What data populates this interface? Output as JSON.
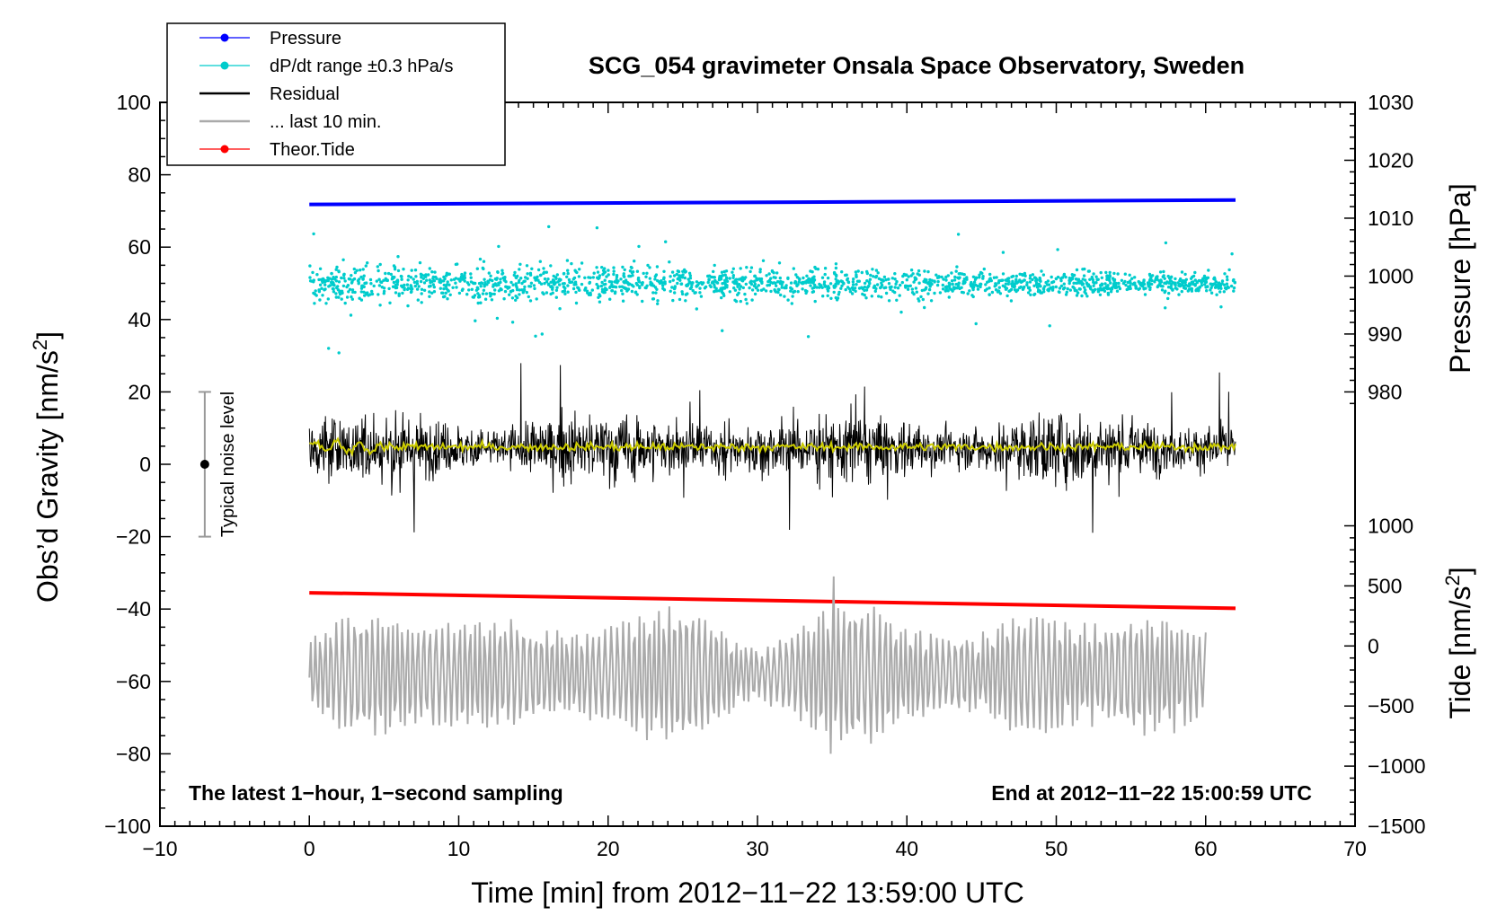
{
  "chart_data": {
    "type": "line",
    "title": "SCG_054 gravimeter Onsala Space Observatory, Sweden",
    "xlabel": "Time [min] from 2012−11−22 13:59:00 UTC",
    "ylabel_left": "Obs’d Gravity [nm/s²]",
    "ylabel_left_main": "Obs’d Gravity [nm/s",
    "ylabel_left_sup": "2",
    "ylabel_left_end": "]",
    "ylabel_pressure": "Pressure [hPa]",
    "ylabel_tide": "Tide [nm/s²]",
    "ylabel_tide_main": "Tide [nm/s",
    "ylabel_tide_sup": "2",
    "ylabel_tide_end": "]",
    "xlim": [
      -10,
      70
    ],
    "ylim": [
      -100,
      100
    ],
    "x_ticks": [
      "−10",
      "0",
      "10",
      "20",
      "30",
      "40",
      "50",
      "60",
      "70"
    ],
    "x_tick_values": [
      -10,
      0,
      10,
      20,
      30,
      40,
      50,
      60,
      70
    ],
    "y_ticks": [
      "100",
      "80",
      "60",
      "40",
      "20",
      "0",
      "−20",
      "−40",
      "−60",
      "−80",
      "−100"
    ],
    "y_tick_values": [
      100,
      80,
      60,
      40,
      20,
      0,
      -20,
      -40,
      -60,
      -80,
      -100
    ],
    "pressure_ticks": [
      "1030",
      "1020",
      "1010",
      "1000",
      "990",
      "980"
    ],
    "pressure_tick_values": [
      1030,
      1020,
      1010,
      1000,
      990,
      980
    ],
    "tide_ticks": [
      "1000",
      "500",
      "0",
      "−500",
      "−1000",
      "−1500"
    ],
    "tide_tick_values": [
      1000,
      500,
      0,
      -500,
      -1000,
      -1500
    ],
    "pressure_axis_map": {
      "value_a": 1030,
      "gravity_a": 100,
      "value_b": 980,
      "gravity_b": 20
    },
    "tide_axis_map": {
      "value_a": 1000,
      "gravity_a": -17,
      "value_b": -1500,
      "gravity_b": -100
    },
    "legend": [
      {
        "label": "Pressure",
        "color": "#0000ff",
        "marker": true
      },
      {
        "label": "dP/dt range ±0.3 hPa/s",
        "color": "#00cccc",
        "marker": true
      },
      {
        "label": "Residual",
        "color": "#000000",
        "marker": false
      },
      {
        "label": "... last 10 min.",
        "color": "#aaaaaa",
        "marker": false
      },
      {
        "label": "Theor.Tide",
        "color": "#ff0000",
        "marker": true
      }
    ],
    "series": [
      {
        "name": "Pressure",
        "color": "#0000ff",
        "x_range": [
          0,
          62
        ],
        "y_start": 71.8,
        "y_end": 73.0
      },
      {
        "name": "dP/dt range ±0.3 hPa/s",
        "color": "#00cccc",
        "x_range": [
          0,
          62
        ],
        "center": 50,
        "spread": 6
      },
      {
        "name": "Residual",
        "color": "#000000",
        "x_range": [
          0,
          62
        ],
        "center": 4.5,
        "range": [
          -22,
          31
        ]
      },
      {
        "name": "Residual smoothed",
        "color": "#cccc00",
        "x_range": [
          0,
          62
        ],
        "center": 4.8
      },
      {
        "name": "... last 10 min.",
        "color": "#aaaaaa",
        "x_range": [
          0,
          60
        ],
        "center": -58,
        "range": [
          -80,
          -31
        ]
      },
      {
        "name": "Theor.Tide",
        "color": "#ff0000",
        "x_range": [
          0,
          62
        ],
        "y_start": -35.5,
        "y_end": -39.8
      }
    ],
    "noise_bar": {
      "label": "Typical noise level",
      "x": -7,
      "center": 0,
      "half_range": 20
    },
    "annotations": {
      "left": "The latest 1−hour, 1−second sampling",
      "right": "End at 2012−11−22 15:00:59 UTC"
    }
  }
}
